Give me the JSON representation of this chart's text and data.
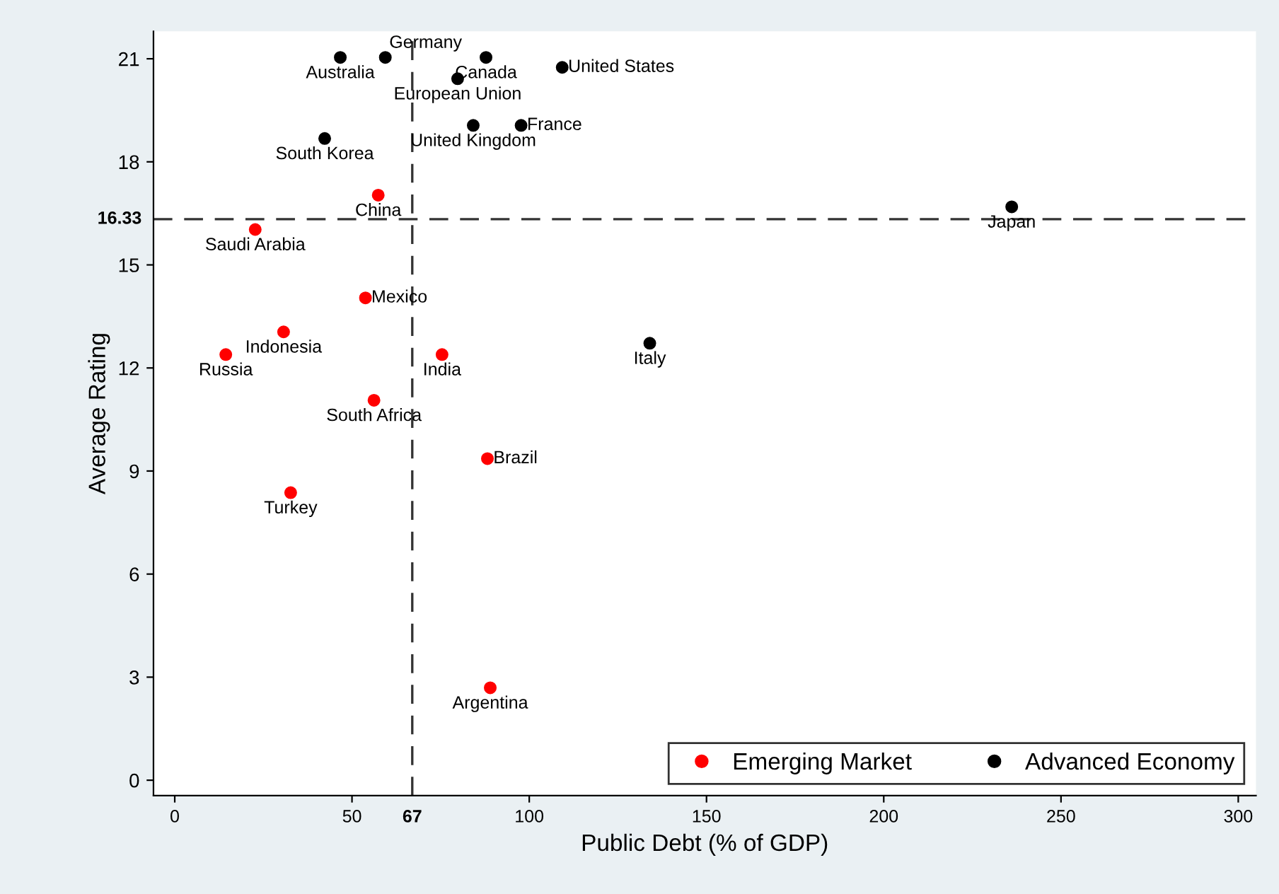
{
  "chart_data": {
    "type": "scatter",
    "xlabel": "Public Debt (% of GDP)",
    "ylabel": "Average Rating",
    "xlim": [
      -6,
      305
    ],
    "ylim": [
      -0.45,
      21.8
    ],
    "xticks": [
      0,
      50,
      100,
      150,
      200,
      250,
      300
    ],
    "yticks": [
      0,
      3,
      6,
      9,
      12,
      15,
      18,
      21
    ],
    "marker": "circle",
    "grid": false,
    "legend": "bottom right",
    "series": [
      {
        "name": "Emerging Market",
        "color": "#ff0000",
        "x": [
          57.4,
          22.7,
          53.8,
          30.7,
          14.4,
          75.4,
          56.2,
          88.2,
          32.7,
          89.0
        ],
        "values": [
          17.03,
          16.03,
          14.04,
          13.05,
          12.39,
          12.39,
          11.06,
          9.36,
          8.37,
          2.69
        ]
      },
      {
        "name": "Advanced Economy",
        "color": "#000000",
        "x": [
          46.7,
          59.4,
          87.8,
          109.3,
          79.8,
          84.2,
          97.7,
          42.3,
          236.1,
          134.0
        ],
        "values": [
          21.04,
          21.04,
          21.04,
          20.75,
          20.42,
          19.06,
          19.06,
          18.68,
          16.69,
          12.72
        ]
      }
    ],
    "ref_lines": [
      {
        "axis": "y",
        "value": 16.33,
        "label": "16.33",
        "color": "#333333",
        "line_style": "dashed"
      },
      {
        "axis": "x",
        "value": 67,
        "label": "67",
        "color": "#333333",
        "line_style": "dashed"
      }
    ],
    "annotations": [
      {
        "text": "China",
        "x": 57.4,
        "y": 17.03
      },
      {
        "text": "Saudi Arabia",
        "x": 22.7,
        "y": 16.03
      },
      {
        "text": "Mexico",
        "x": 53.8,
        "y": 14.04
      },
      {
        "text": "Indonesia",
        "x": 30.7,
        "y": 13.05
      },
      {
        "text": "Russia",
        "x": 14.4,
        "y": 12.39
      },
      {
        "text": "India",
        "x": 75.4,
        "y": 12.39
      },
      {
        "text": "South Africa",
        "x": 56.2,
        "y": 11.06
      },
      {
        "text": "Brazil",
        "x": 88.2,
        "y": 9.36
      },
      {
        "text": "Turkey",
        "x": 32.7,
        "y": 8.37
      },
      {
        "text": "Argentina",
        "x": 89.0,
        "y": 2.69
      },
      {
        "text": "Australia",
        "x": 46.7,
        "y": 21.04
      },
      {
        "text": "Germany",
        "x": 59.4,
        "y": 21.04
      },
      {
        "text": "Canada",
        "x": 87.8,
        "y": 21.04
      },
      {
        "text": "United States",
        "x": 109.3,
        "y": 20.75
      },
      {
        "text": "European Union",
        "x": 79.8,
        "y": 20.42
      },
      {
        "text": "United Kingdom",
        "x": 84.2,
        "y": 19.06
      },
      {
        "text": "France",
        "x": 97.7,
        "y": 19.06
      },
      {
        "text": "South Korea",
        "x": 42.3,
        "y": 18.68
      },
      {
        "text": "Japan",
        "x": 236.1,
        "y": 16.69
      },
      {
        "text": "Italy",
        "x": 134.0,
        "y": 12.72
      }
    ]
  }
}
